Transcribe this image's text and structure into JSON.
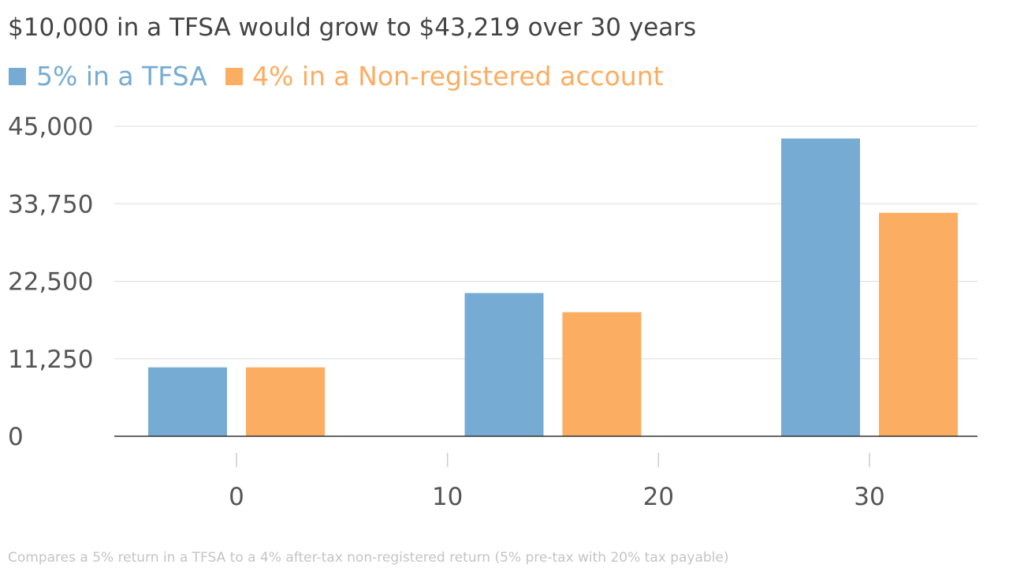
{
  "chart_data": {
    "type": "bar",
    "title": "$10,000 in a TFSA would grow to $43,219 over 30 years",
    "categories": [
      0,
      15,
      30
    ],
    "series": [
      {
        "name": "5% in a TFSA",
        "color": "#76acd3",
        "values": [
          10000,
          20789,
          43219
        ]
      },
      {
        "name": "4% in a Non-registered account",
        "color": "#fbad62",
        "values": [
          10000,
          18009,
          32434
        ]
      }
    ],
    "yticks": [
      "0",
      "11,250",
      "22,500",
      "33,750",
      "45,000"
    ],
    "ytick_values": [
      0,
      11250,
      22500,
      33750,
      45000
    ],
    "xticks": [
      "0",
      "10",
      "20",
      "30"
    ],
    "xtick_values": [
      0,
      10,
      20,
      30
    ],
    "ylim": [
      0,
      45000
    ],
    "xlim": [
      0,
      30
    ],
    "grid": true,
    "legend": "top-left",
    "note": "Compares a 5% return in a TFSA to a 4% after-tax non-registered return (5% pre-tax with 20% tax payable)"
  }
}
